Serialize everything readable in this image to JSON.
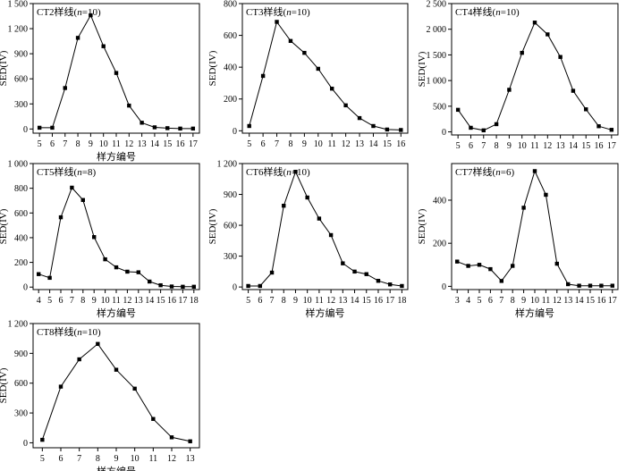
{
  "chart_data": [
    {
      "type": "line",
      "title_prefix": "CT2样线(",
      "title_n": "n",
      "title_suffix": "=10)",
      "xlabel": "样方编号",
      "ylabel": "SED(IV)",
      "xlim": [
        4.5,
        17.5
      ],
      "ylim": [
        -50,
        1500
      ],
      "xticks": [
        5,
        6,
        7,
        8,
        9,
        10,
        11,
        12,
        13,
        14,
        15,
        16,
        17
      ],
      "yticks": [
        0,
        300,
        600,
        900,
        1200,
        1500
      ],
      "ytick_labels": [
        "0",
        "300",
        "600",
        "900",
        "1 200",
        "1 500"
      ],
      "series": [
        {
          "x": [
            5,
            6,
            7,
            8,
            9,
            10,
            11,
            12,
            13,
            14,
            15,
            16,
            17
          ],
          "values": [
            15,
            15,
            490,
            1090,
            1360,
            990,
            670,
            280,
            75,
            20,
            10,
            5,
            5
          ]
        }
      ]
    },
    {
      "type": "line",
      "title_prefix": "CT3样线(",
      "title_n": "n",
      "title_suffix": "=10)",
      "xlabel": "",
      "ylabel": "SED(IV)",
      "xlim": [
        4.5,
        16.5
      ],
      "ylim": [
        -15,
        800
      ],
      "xticks": [
        5,
        6,
        7,
        8,
        9,
        10,
        11,
        12,
        13,
        14,
        15,
        16
      ],
      "yticks": [
        0,
        200,
        400,
        600,
        800
      ],
      "ytick_labels": [
        "0",
        "200",
        "400",
        "600",
        "800"
      ],
      "series": [
        {
          "x": [
            5,
            6,
            7,
            8,
            9,
            10,
            11,
            12,
            13,
            14,
            15,
            16
          ],
          "values": [
            30,
            345,
            685,
            565,
            490,
            390,
            265,
            160,
            80,
            30,
            8,
            5
          ]
        }
      ]
    },
    {
      "type": "line",
      "title_prefix": "CT4样线(",
      "title_n": "n",
      "title_suffix": "=10)",
      "xlabel": "",
      "ylabel": "SED(IV)",
      "xlim": [
        4.5,
        17.5
      ],
      "ylim": [
        -60,
        2500
      ],
      "xticks": [
        5,
        6,
        7,
        8,
        9,
        10,
        11,
        12,
        13,
        14,
        15,
        16,
        17
      ],
      "yticks": [
        0,
        500,
        1000,
        1500,
        2000,
        2500
      ],
      "ytick_labels": [
        "0",
        "500",
        "1 000",
        "1 500",
        "2 000",
        "2 500"
      ],
      "series": [
        {
          "x": [
            5,
            6,
            7,
            8,
            9,
            10,
            11,
            12,
            13,
            14,
            15,
            16,
            17
          ],
          "values": [
            430,
            80,
            30,
            150,
            820,
            1540,
            2130,
            1900,
            1460,
            800,
            440,
            110,
            40
          ]
        }
      ]
    },
    {
      "type": "line",
      "title_prefix": "CT5样线(",
      "title_n": "n",
      "title_suffix": "=8)",
      "xlabel": "样方编号",
      "ylabel": "SED(IV)",
      "xlim": [
        3.5,
        18.5
      ],
      "ylim": [
        -20,
        1000
      ],
      "xticks": [
        4,
        5,
        6,
        7,
        8,
        9,
        10,
        11,
        12,
        13,
        14,
        15,
        16,
        17,
        18
      ],
      "yticks": [
        0,
        200,
        400,
        600,
        800,
        1000
      ],
      "ytick_labels": [
        "0",
        "200",
        "400",
        "600",
        "800",
        "1 000"
      ],
      "series": [
        {
          "x": [
            4,
            5,
            6,
            7,
            8,
            9,
            10,
            11,
            12,
            13,
            14,
            15,
            16,
            17,
            18
          ],
          "values": [
            105,
            75,
            565,
            805,
            705,
            405,
            225,
            160,
            125,
            120,
            45,
            15,
            5,
            3,
            3
          ]
        }
      ]
    },
    {
      "type": "line",
      "title_prefix": "CT6样线(",
      "title_n": "n",
      "title_suffix": "=10)",
      "xlabel": "样方编号",
      "ylabel": "SED(IV)",
      "xlim": [
        4.5,
        18.5
      ],
      "ylim": [
        -25,
        1200
      ],
      "xticks": [
        5,
        6,
        7,
        8,
        9,
        10,
        11,
        12,
        13,
        14,
        15,
        16,
        17,
        18
      ],
      "yticks": [
        0,
        300,
        600,
        900,
        1200
      ],
      "ytick_labels": [
        "0",
        "300",
        "600",
        "900",
        "1 200"
      ],
      "series": [
        {
          "x": [
            5,
            6,
            7,
            8,
            9,
            10,
            11,
            12,
            13,
            14,
            15,
            16,
            17,
            18
          ],
          "values": [
            10,
            10,
            140,
            790,
            1120,
            870,
            665,
            505,
            230,
            150,
            125,
            60,
            25,
            10
          ]
        }
      ]
    },
    {
      "type": "line",
      "title_prefix": "CT7样线(",
      "title_n": "n",
      "title_suffix": "=6)",
      "xlabel": "样方编号",
      "ylabel": "SED(IV)",
      "xlim": [
        2.5,
        17.5
      ],
      "ylim": [
        -15,
        570
      ],
      "xticks": [
        3,
        4,
        5,
        6,
        7,
        8,
        9,
        10,
        11,
        12,
        13,
        14,
        15,
        16,
        17
      ],
      "yticks": [
        0,
        200,
        400
      ],
      "ytick_labels": [
        "0",
        "200",
        "400"
      ],
      "series": [
        {
          "x": [
            3,
            4,
            5,
            6,
            7,
            8,
            9,
            10,
            11,
            12,
            13,
            14,
            15,
            16,
            17
          ],
          "values": [
            115,
            95,
            100,
            80,
            25,
            95,
            365,
            535,
            425,
            105,
            10,
            3,
            3,
            3,
            3
          ]
        }
      ]
    },
    {
      "type": "line",
      "title_prefix": "CT8样线(",
      "title_n": "n",
      "title_suffix": "=10)",
      "xlabel": "样方编号",
      "ylabel": "SED(IV)",
      "xlim": [
        4.5,
        13.5
      ],
      "ylim": [
        -50,
        1200
      ],
      "xticks": [
        5,
        6,
        7,
        8,
        9,
        10,
        11,
        12,
        13
      ],
      "yticks": [
        0,
        300,
        600,
        900,
        1200
      ],
      "ytick_labels": [
        "0",
        "300",
        "600",
        "900",
        "1 200"
      ],
      "series": [
        {
          "x": [
            5,
            6,
            7,
            8,
            9,
            10,
            11,
            12,
            13
          ],
          "values": [
            30,
            565,
            840,
            995,
            735,
            545,
            240,
            55,
            15
          ]
        }
      ]
    }
  ]
}
